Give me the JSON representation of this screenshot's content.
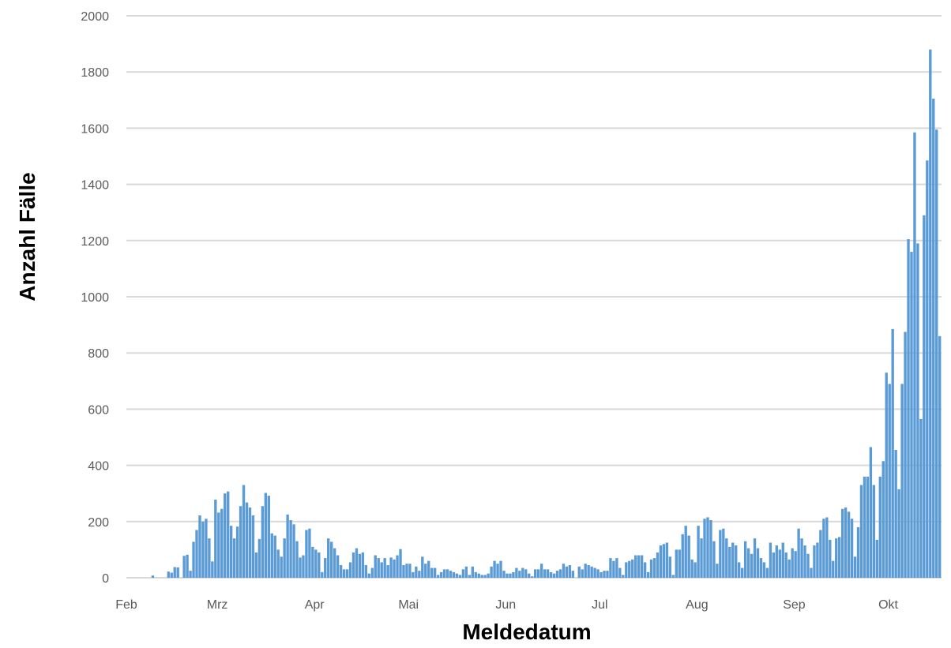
{
  "chart_data": {
    "type": "bar",
    "title": "",
    "xlabel": "Meldedatum",
    "ylabel": "Anzahl Fälle",
    "ylim": [
      0,
      2000
    ],
    "yticks": [
      0,
      200,
      400,
      600,
      800,
      1000,
      1200,
      1400,
      1600,
      1800,
      2000
    ],
    "xticks": [
      {
        "label": "Feb",
        "day": 0
      },
      {
        "label": "Mrz",
        "day": 29
      },
      {
        "label": "Apr",
        "day": 60
      },
      {
        "label": "Mai",
        "day": 90
      },
      {
        "label": "Jun",
        "day": 121
      },
      {
        "label": "Jul",
        "day": 151
      },
      {
        "label": "Aug",
        "day": 182
      },
      {
        "label": "Sep",
        "day": 213
      },
      {
        "label": "Okt",
        "day": 243
      }
    ],
    "grid": true,
    "legend": "none",
    "colors": {
      "bar": "#5b9bd5",
      "grid": "#d9d9d9"
    },
    "values": [
      0,
      0,
      0,
      0,
      0,
      0,
      0,
      0,
      8,
      0,
      0,
      0,
      0,
      22,
      18,
      38,
      37,
      0,
      78,
      82,
      25,
      128,
      170,
      222,
      200,
      210,
      140,
      58,
      278,
      232,
      245,
      300,
      307,
      185,
      140,
      182,
      255,
      330,
      268,
      250,
      222,
      90,
      138,
      255,
      302,
      292,
      158,
      150,
      100,
      75,
      140,
      225,
      205,
      190,
      130,
      72,
      80,
      170,
      175,
      110,
      100,
      90,
      20,
      70,
      140,
      128,
      105,
      80,
      45,
      30,
      30,
      55,
      90,
      105,
      85,
      90,
      45,
      15,
      35,
      80,
      70,
      55,
      70,
      45,
      72,
      65,
      80,
      102,
      45,
      50,
      50,
      20,
      40,
      25,
      75,
      50,
      60,
      35,
      35,
      10,
      20,
      30,
      30,
      25,
      20,
      15,
      10,
      30,
      40,
      10,
      40,
      20,
      15,
      10,
      10,
      15,
      40,
      60,
      50,
      60,
      25,
      15,
      15,
      20,
      35,
      25,
      35,
      30,
      15,
      5,
      30,
      30,
      50,
      30,
      30,
      20,
      15,
      25,
      30,
      50,
      40,
      45,
      25,
      0,
      40,
      30,
      50,
      45,
      40,
      35,
      30,
      20,
      25,
      25,
      70,
      60,
      70,
      35,
      10,
      55,
      60,
      65,
      80,
      80,
      80,
      55,
      20,
      65,
      70,
      90,
      115,
      120,
      125,
      75,
      10,
      100,
      100,
      155,
      185,
      150,
      65,
      55,
      185,
      140,
      210,
      215,
      205,
      130,
      50,
      170,
      175,
      140,
      110,
      125,
      115,
      55,
      35,
      130,
      105,
      85,
      140,
      105,
      70,
      55,
      35,
      125,
      90,
      115,
      100,
      125,
      90,
      65,
      105,
      95,
      175,
      140,
      115,
      85,
      35,
      115,
      125,
      170,
      210,
      215,
      135,
      60,
      140,
      145,
      245,
      250,
      235,
      210,
      75,
      180,
      330,
      360,
      360,
      465,
      330,
      135,
      360,
      415,
      730,
      690,
      885,
      455,
      315,
      690,
      875,
      1205,
      1160,
      1585,
      1190,
      565,
      1290,
      1485,
      1880,
      1705,
      1595,
      860
    ]
  }
}
